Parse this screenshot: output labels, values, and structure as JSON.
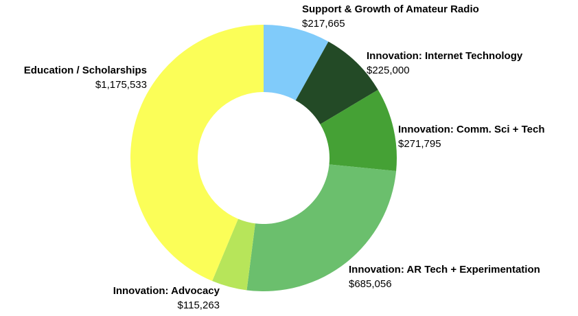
{
  "chart_data": {
    "type": "pie",
    "donut": true,
    "legend": "none",
    "slices": [
      {
        "name": "Support & Growth of Amateur Radio",
        "value_label": "$217,665",
        "value": 217665,
        "color": "#80cbfa"
      },
      {
        "name": "Innovation: Internet Technology",
        "value_label": "$225,000",
        "value": 225000,
        "color": "#234a26"
      },
      {
        "name": "Innovation: Comm. Sci + Tech",
        "value_label": "$271,795",
        "value": 271795,
        "color": "#45a135"
      },
      {
        "name": "Innovation: AR Tech + Experimentation",
        "value_label": "$685,056",
        "value": 685056,
        "color": "#6bbf6d"
      },
      {
        "name": "Innovation: Advocacy",
        "value_label": "$115,263",
        "value": 115263,
        "color": "#b7e55a"
      },
      {
        "name": "Education / Scholarships",
        "value_label": "$1,175,533",
        "value": 1175533,
        "color": "#fbfe58"
      }
    ]
  }
}
